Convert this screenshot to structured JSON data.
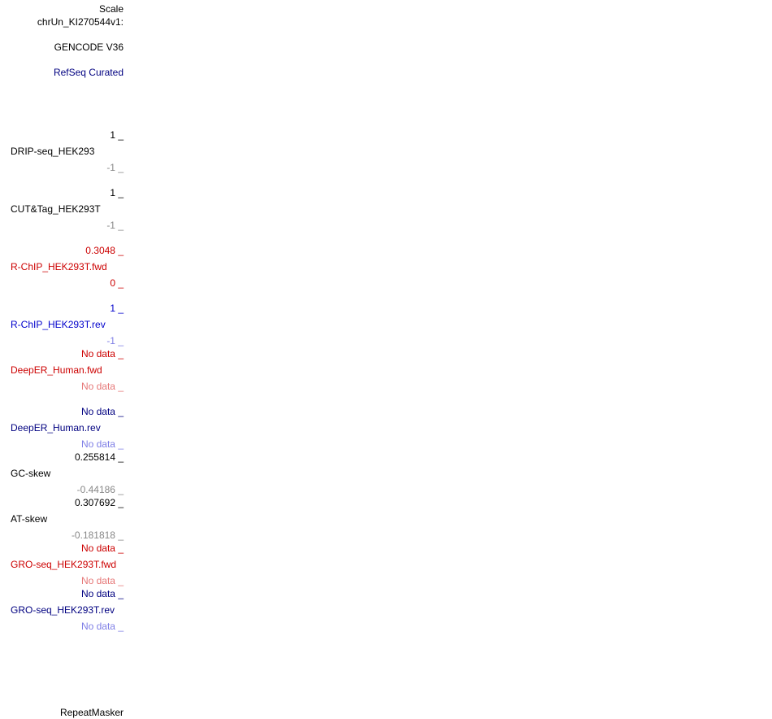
{
  "header": {
    "scale": "Scale",
    "chrom": "chrUn_KI270544v1:"
  },
  "tracks": {
    "gencode": "GENCODE V36",
    "refseq": "RefSeq Curated",
    "drip": {
      "max": "1 _",
      "name": "DRIP-seq_HEK293",
      "min": "-1 _"
    },
    "cuttag": {
      "max": "1 _",
      "name": "CUT&Tag_HEK293T",
      "min": "-1 _"
    },
    "rchip_fwd": {
      "max": "0.3048 _",
      "name": "R-ChIP_HEK293T.fwd",
      "min": "0 _"
    },
    "rchip_rev": {
      "max": "1 _",
      "name": "R-ChIP_HEK293T.rev",
      "min": "-1 _"
    },
    "deeper_fwd": {
      "max": "No data _",
      "name": "DeepER_Human.fwd",
      "min": "No data _"
    },
    "deeper_rev": {
      "max": "No data _",
      "name": "DeepER_Human.rev",
      "min": "No data _"
    },
    "gc_skew": {
      "max": "0.255814 _",
      "name": "GC-skew",
      "min": "-0.44186 _"
    },
    "at_skew": {
      "max": "0.307692 _",
      "name": "AT-skew",
      "min": "-0.181818 _"
    },
    "gro_fwd": {
      "max": "No data _",
      "name": "GRO-seq_HEK293T.fwd",
      "min": "No data _"
    },
    "gro_rev": {
      "max": "No data _",
      "name": "GRO-seq_HEK293T.rev",
      "min": "No data _"
    },
    "repeatmasker": "RepeatMasker"
  },
  "colors": {
    "black": "#000000",
    "navy": "#000080",
    "red": "#cc0000",
    "blue": "#0000cc",
    "gray": "#888888",
    "light_red": "#e67878",
    "light_blue": "#7f7fe6"
  }
}
